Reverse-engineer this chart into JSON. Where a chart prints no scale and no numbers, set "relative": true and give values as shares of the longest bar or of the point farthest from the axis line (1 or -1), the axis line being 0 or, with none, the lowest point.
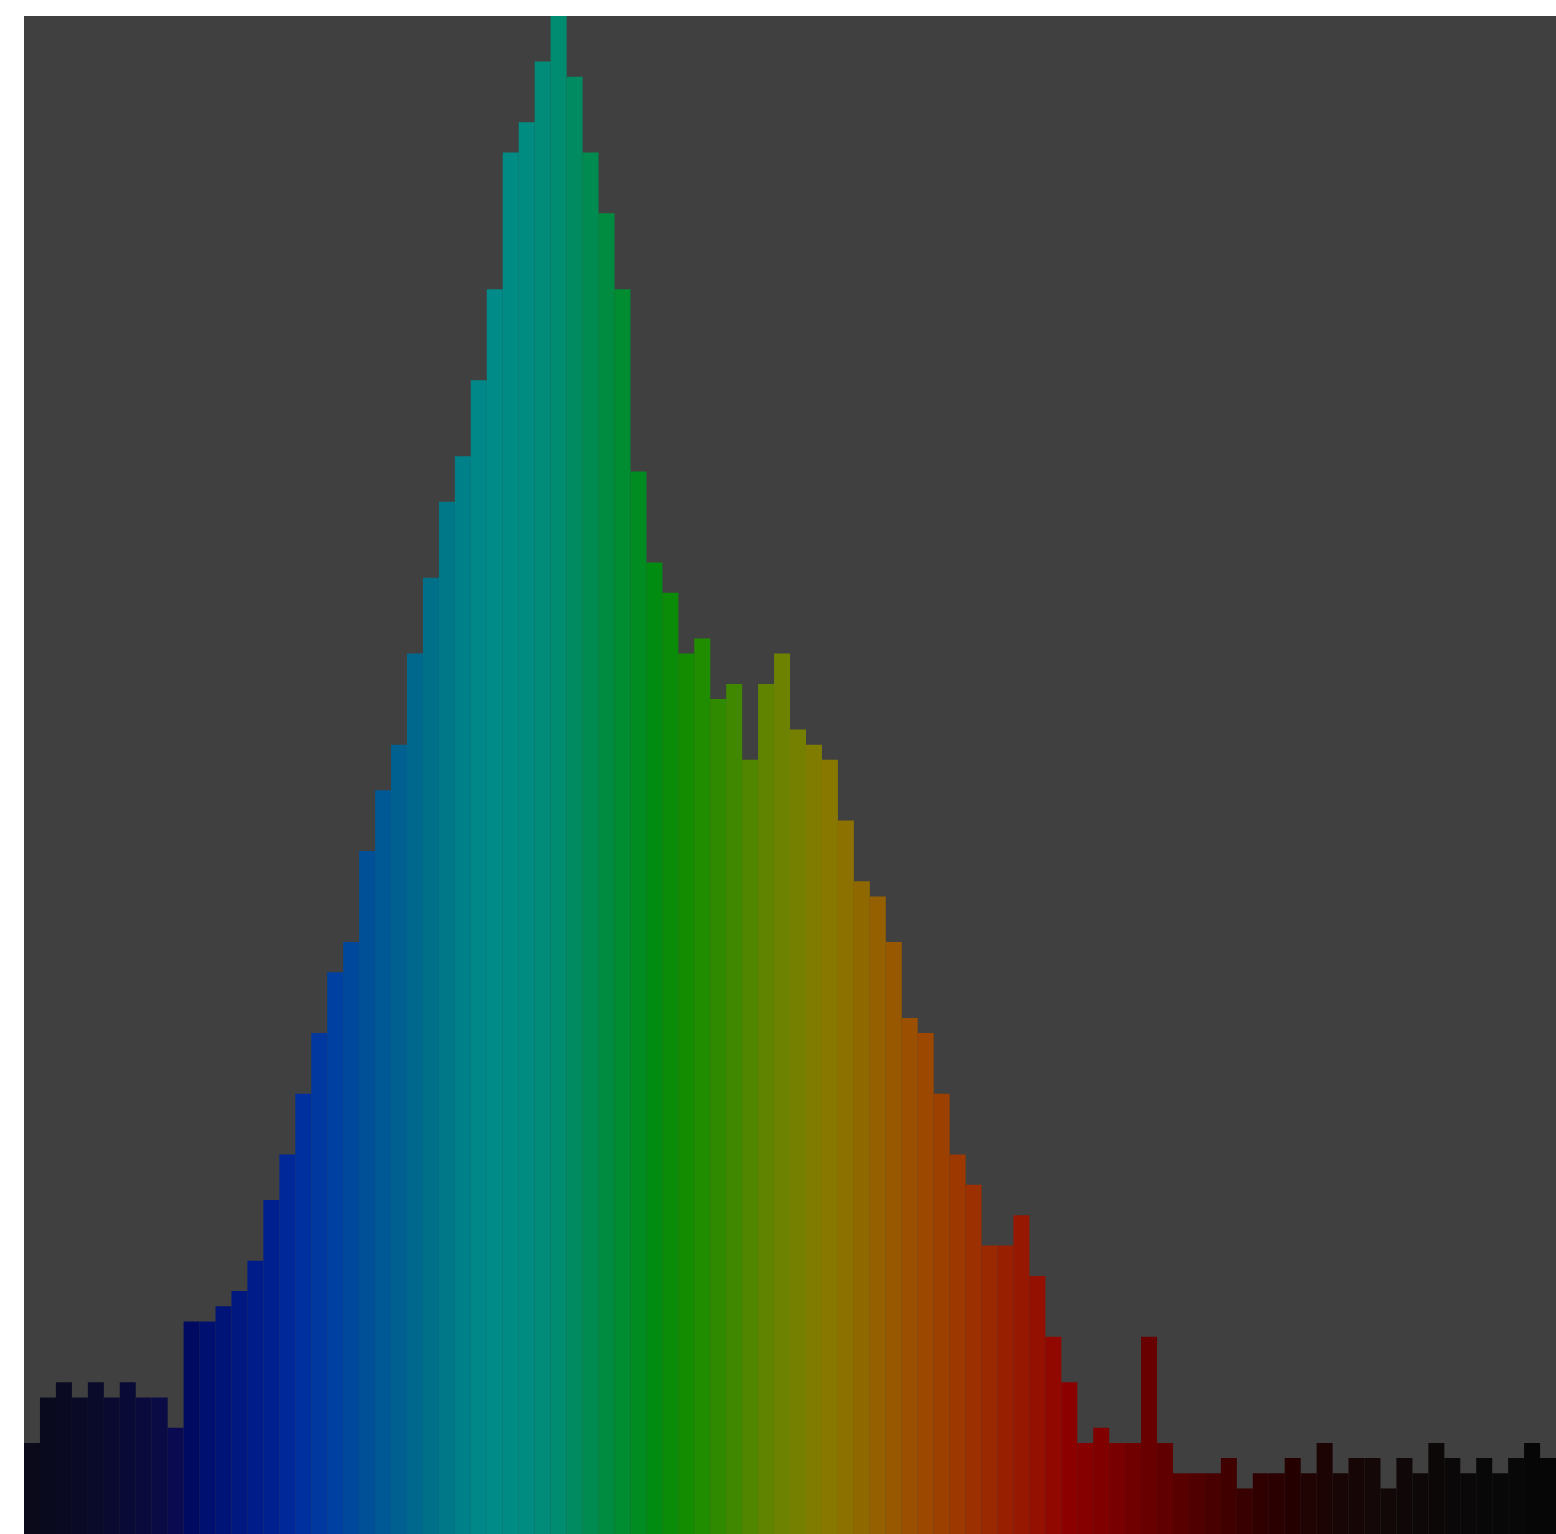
{
  "chart_data": {
    "type": "bar",
    "relative": true,
    "categories": [
      null,
      null,
      null,
      null,
      null,
      null,
      null,
      null,
      null,
      null,
      null,
      null,
      null,
      null,
      null,
      null,
      null,
      null,
      null,
      null,
      null,
      null,
      null,
      null,
      null,
      null,
      null,
      null,
      null,
      null,
      null,
      null,
      null,
      null,
      null,
      null,
      null,
      null,
      null,
      null,
      null,
      null,
      null,
      null,
      null,
      null,
      null,
      null,
      null,
      null,
      null,
      null,
      null,
      null,
      null,
      null,
      null,
      null,
      null,
      null,
      null,
      null,
      null,
      null,
      null,
      null,
      null,
      null,
      null,
      null,
      null,
      null,
      null,
      null,
      null,
      null,
      null,
      null,
      null,
      null,
      null,
      null,
      null,
      null,
      null,
      null,
      null,
      null,
      null,
      null,
      null,
      null,
      null,
      null,
      null,
      null
    ],
    "values": [
      0.06,
      0.09,
      0.1,
      0.09,
      0.1,
      0.09,
      0.1,
      0.09,
      0.09,
      0.07,
      0.14,
      0.14,
      0.15,
      0.16,
      0.18,
      0.22,
      0.25,
      0.29,
      0.33,
      0.37,
      0.39,
      0.45,
      0.49,
      0.52,
      0.58,
      0.63,
      0.68,
      0.71,
      0.76,
      0.82,
      0.91,
      0.93,
      0.97,
      1,
      0.96,
      0.91,
      0.87,
      0.82,
      0.7,
      0.64,
      0.62,
      0.58,
      0.59,
      0.55,
      0.56,
      0.51,
      0.56,
      0.58,
      0.53,
      0.52,
      0.51,
      0.47,
      0.43,
      0.42,
      0.39,
      0.34,
      0.33,
      0.29,
      0.25,
      0.23,
      0.19,
      0.19,
      0.21,
      0.17,
      0.13,
      0.1,
      0.06,
      0.07,
      0.06,
      0.06,
      0.13,
      0.06,
      0.04,
      0.04,
      0.04,
      0.05,
      0.03,
      0.04,
      0.04,
      0.05,
      0.04,
      0.06,
      0.04,
      0.05,
      0.05,
      0.03,
      0.05,
      0.04,
      0.06,
      0.05,
      0.04,
      0.05,
      0.04,
      0.05,
      0.06,
      0.05
    ],
    "colors": [
      "#0a0a1a",
      "#0a0a1e",
      "#0a0a22",
      "#0a0a26",
      "#0a0a2a",
      "#0a0a30",
      "#0a0a36",
      "#0a0a3c",
      "#0a0a44",
      "#0a0a50",
      "#000a60",
      "#001070",
      "#001478",
      "#001880",
      "#001c88",
      "#002090",
      "#002898",
      "#0030a0",
      "#0038a0",
      "#0040a0",
      "#00489c",
      "#005098",
      "#005894",
      "#006090",
      "#00688c",
      "#007088",
      "#007888",
      "#008088",
      "#008888",
      "#008a88",
      "#008c84",
      "#008c80",
      "#008c78",
      "#008c70",
      "#008c60",
      "#008c50",
      "#008c40",
      "#008c30",
      "#008c20",
      "#008c10",
      "#0a8c08",
      "#148c00",
      "#208c00",
      "#308a00",
      "#408800",
      "#508600",
      "#608400",
      "#6c8200",
      "#768000",
      "#807c00",
      "#887800",
      "#8c7000",
      "#906800",
      "#946000",
      "#985800",
      "#9a5000",
      "#9c4800",
      "#9c4000",
      "#9c3800",
      "#9c3000",
      "#9a2800",
      "#982000",
      "#961800",
      "#941000",
      "#900800",
      "#8c0000",
      "#860000",
      "#800000",
      "#780000",
      "#700000",
      "#680000",
      "#600000",
      "#580000",
      "#500000",
      "#480000",
      "#400000",
      "#380000",
      "#300000",
      "#2a0000",
      "#240000",
      "#200404",
      "#1c0404",
      "#180606",
      "#160606",
      "#140808",
      "#120808",
      "#100808",
      "#0e0808",
      "#0c0808",
      "#0a0808",
      "#0a0808",
      "#080808",
      "#080808",
      "#080808",
      "#060606",
      "#060606"
    ]
  }
}
